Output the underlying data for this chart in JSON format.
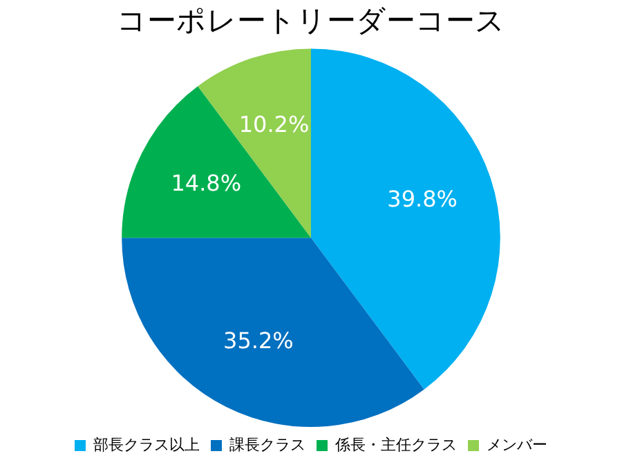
{
  "chart_data": {
    "type": "pie",
    "title": "コーポレートリーダーコース",
    "categories": [
      "部長クラス以上",
      "課長クラス",
      "係長・主任クラス",
      "メンバー"
    ],
    "values": [
      39.8,
      35.2,
      14.8,
      10.2
    ],
    "colors": [
      "#00b0f0",
      "#0070c0",
      "#00b050",
      "#92d050"
    ],
    "value_labels": [
      "39.8%",
      "35.2%",
      "14.8%",
      "10.2%"
    ],
    "legend": "bottom"
  }
}
